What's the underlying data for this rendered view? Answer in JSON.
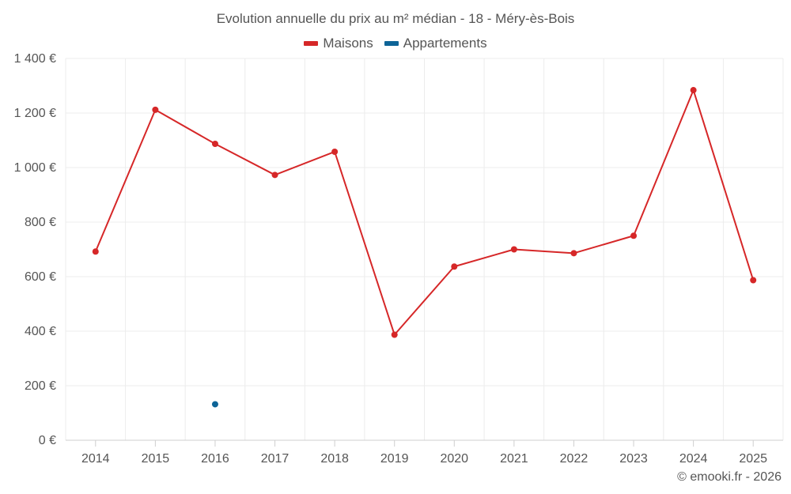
{
  "chart_data": {
    "type": "line",
    "title": "Evolution annuelle du prix au m² médian - 18 - Méry-ès-Bois",
    "categories": [
      "2014",
      "2015",
      "2016",
      "2017",
      "2018",
      "2019",
      "2020",
      "2021",
      "2022",
      "2023",
      "2024",
      "2025"
    ],
    "series": [
      {
        "name": "Maisons",
        "color": "#d62728",
        "values": [
          692,
          1212,
          1087,
          973,
          1058,
          387,
          637,
          700,
          686,
          750,
          1284,
          587
        ]
      },
      {
        "name": "Appartements",
        "color": "#0d6497",
        "values": [
          null,
          null,
          132,
          null,
          null,
          null,
          null,
          null,
          null,
          null,
          null,
          null
        ]
      }
    ],
    "y_ticks": [
      "0 €",
      "200 €",
      "400 €",
      "600 €",
      "800 €",
      "1 000 €",
      "1 200 €",
      "1 400 €"
    ],
    "ylim": [
      0,
      1400
    ],
    "xlabel": "",
    "ylabel": "",
    "grid": true,
    "legend_position": "top-center"
  },
  "credits": "© emooki.fr - 2026"
}
